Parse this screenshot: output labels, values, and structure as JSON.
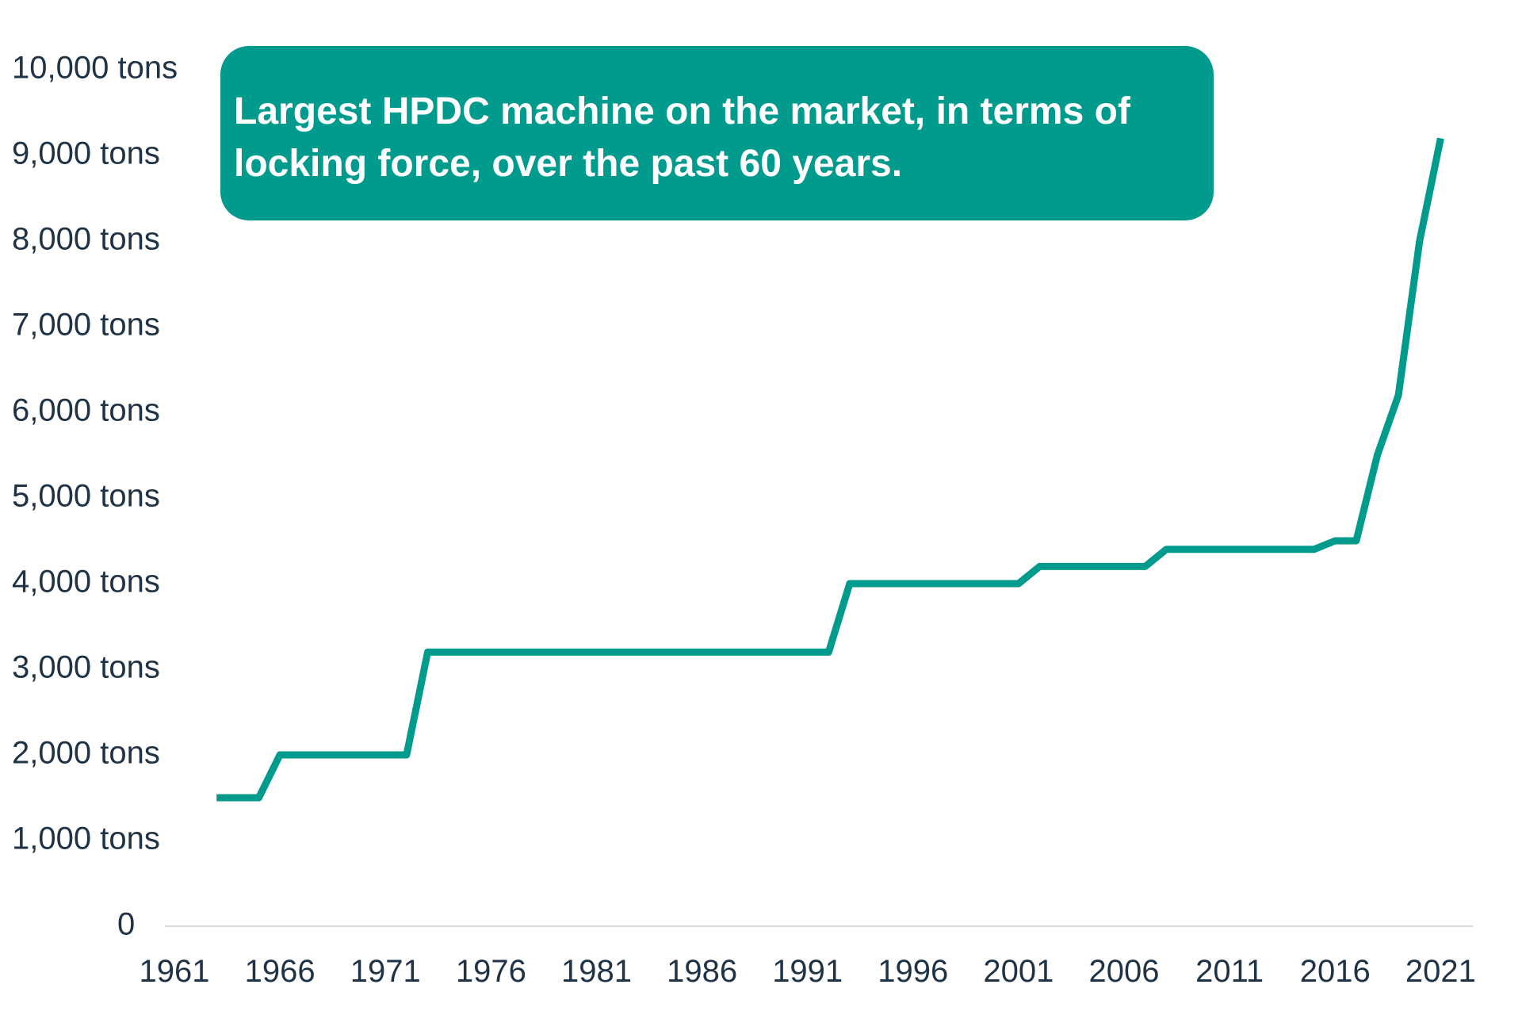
{
  "chart_data": {
    "type": "line",
    "title": "Largest HPDC machine on the market, in terms of locking force, over the past 60 years.",
    "xlabel": "",
    "ylabel": "",
    "xlim": [
      1961,
      2022
    ],
    "ylim": [
      0,
      10000
    ],
    "x_ticks": [
      "1961",
      "1966",
      "1971",
      "1976",
      "1981",
      "1986",
      "1991",
      "1996",
      "2001",
      "2006",
      "2011",
      "2016",
      "2021"
    ],
    "y_ticks": [
      "0",
      "1,000 tons",
      "2,000 tons",
      "3,000 tons",
      "4,000 tons",
      "5,000 tons",
      "6,000 tons",
      "7,000 tons",
      "8,000 tons",
      "9,000 tons",
      "10,000 tons"
    ],
    "grid": false,
    "legend": "none",
    "line_color": "#009b8d",
    "series": [
      {
        "x": [
          1963,
          1965,
          1966,
          1968,
          1972,
          1973,
          1975,
          1992,
          1993,
          1995,
          2001,
          2002,
          2004,
          2007,
          2008,
          2010,
          2015,
          2016,
          2017,
          2018,
          2019,
          2020,
          2021
        ],
        "values": [
          1500,
          1500,
          2000,
          2000,
          2000,
          3200,
          3200,
          3200,
          4000,
          4000,
          4000,
          4200,
          4200,
          4200,
          4400,
          4400,
          4400,
          4500,
          4500,
          5500,
          6200,
          8000,
          9200
        ]
      }
    ]
  }
}
